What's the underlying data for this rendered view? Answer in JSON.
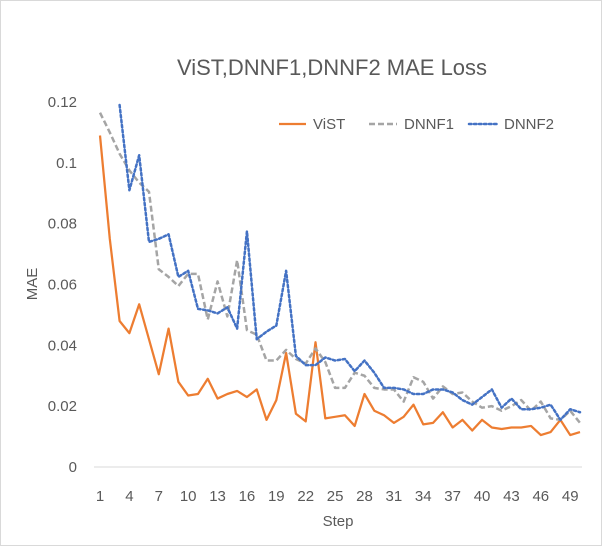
{
  "chart_data": {
    "type": "line",
    "title": "ViST,DNNF1,DNNF2 MAE Loss",
    "xlabel": "Step",
    "ylabel": "MAE",
    "ylim": [
      0,
      0.12
    ],
    "yticks": [
      0,
      0.02,
      0.04,
      0.06,
      0.08,
      0.1,
      0.12
    ],
    "ytick_labels": [
      "0",
      "0.02",
      "0.04",
      "0.06",
      "0.08",
      "0.1",
      "0.12"
    ],
    "xlim": [
      1,
      50
    ],
    "xticks": [
      1,
      4,
      7,
      10,
      13,
      16,
      19,
      22,
      25,
      28,
      31,
      34,
      37,
      40,
      43,
      46,
      49
    ],
    "grid": false,
    "legend": "top-right",
    "x": [
      1,
      2,
      3,
      4,
      5,
      6,
      7,
      8,
      9,
      10,
      11,
      12,
      13,
      14,
      15,
      16,
      17,
      18,
      19,
      20,
      21,
      22,
      23,
      24,
      25,
      26,
      27,
      28,
      29,
      30,
      31,
      32,
      33,
      34,
      35,
      36,
      37,
      38,
      39,
      40,
      41,
      42,
      43,
      44,
      45,
      46,
      47,
      48,
      49,
      50
    ],
    "series": [
      {
        "name": "ViST",
        "color": "#ED7D31",
        "style": "solid",
        "values": [
          0.109,
          0.075,
          0.048,
          0.044,
          0.0535,
          0.042,
          0.0305,
          0.0455,
          0.028,
          0.0235,
          0.024,
          0.029,
          0.0225,
          0.024,
          0.025,
          0.023,
          0.0255,
          0.0155,
          0.022,
          0.0375,
          0.0175,
          0.015,
          0.041,
          0.016,
          0.0165,
          0.017,
          0.0135,
          0.024,
          0.0185,
          0.017,
          0.0145,
          0.0165,
          0.0205,
          0.014,
          0.0145,
          0.018,
          0.013,
          0.0155,
          0.012,
          0.0155,
          0.013,
          0.0125,
          0.013,
          0.013,
          0.0135,
          0.0105,
          0.0115,
          0.0155,
          0.0105,
          0.0115
        ]
      },
      {
        "name": "DNNF1",
        "color": "#A5A5A5",
        "style": "dashed",
        "values": [
          0.1165,
          0.11,
          0.103,
          0.0975,
          0.0935,
          0.0905,
          0.065,
          0.0625,
          0.0595,
          0.0635,
          0.0635,
          0.0485,
          0.061,
          0.0495,
          0.068,
          0.045,
          0.0435,
          0.035,
          0.035,
          0.0385,
          0.0355,
          0.034,
          0.039,
          0.0345,
          0.026,
          0.026,
          0.031,
          0.03,
          0.026,
          0.0255,
          0.0255,
          0.0215,
          0.0295,
          0.028,
          0.0225,
          0.0265,
          0.024,
          0.0245,
          0.0215,
          0.0195,
          0.02,
          0.0185,
          0.02,
          0.022,
          0.0185,
          0.0215,
          0.016,
          0.0155,
          0.0185,
          0.0145
        ]
      },
      {
        "name": "DNNF2",
        "color": "#4472C4",
        "style": "dotted",
        "values": [
          null,
          null,
          0.119,
          0.091,
          0.1025,
          0.074,
          0.075,
          0.0765,
          0.0625,
          0.0645,
          0.052,
          0.0515,
          0.0505,
          0.0525,
          0.0455,
          0.0775,
          0.042,
          0.0445,
          0.0465,
          0.0645,
          0.0365,
          0.0335,
          0.0335,
          0.036,
          0.035,
          0.0355,
          0.0315,
          0.035,
          0.031,
          0.026,
          0.026,
          0.0255,
          0.024,
          0.024,
          0.0255,
          0.0255,
          0.0245,
          0.022,
          0.0205,
          0.023,
          0.0255,
          0.0195,
          0.0225,
          0.019,
          0.019,
          0.0195,
          0.0205,
          0.0155,
          0.019,
          0.018
        ]
      }
    ]
  }
}
